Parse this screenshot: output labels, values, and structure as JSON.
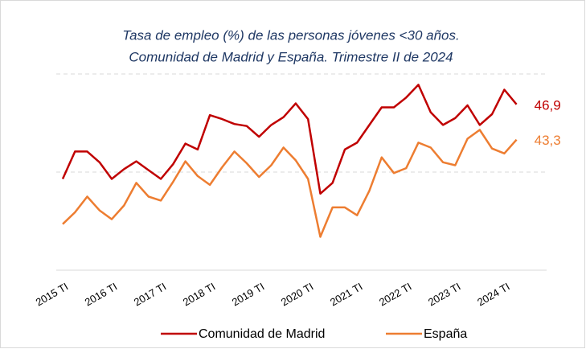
{
  "chart_data": {
    "type": "line",
    "title": [
      "Tasa de empleo (%) de las personas jóvenes <30 años.",
      "Comunidad de Madrid y España. Trimestre II de 2024"
    ],
    "categories": [
      "2015 TI",
      null,
      null,
      null,
      "2016 TI",
      null,
      null,
      null,
      "2017 TI",
      null,
      null,
      null,
      "2018 TI",
      null,
      null,
      null,
      "2019 TI",
      null,
      null,
      null,
      "2020 TI",
      null,
      null,
      null,
      "2021 TI",
      null,
      null,
      null,
      "2022 TI",
      null,
      null,
      null,
      "2023 TI",
      null,
      null,
      null,
      "2024 TI",
      null
    ],
    "series": [
      {
        "name": "Comunidad de Madrid",
        "color": "#c00000",
        "values": [
          39.3,
          42.1,
          42.1,
          41.0,
          39.3,
          40.3,
          41.1,
          40.2,
          39.3,
          40.8,
          42.9,
          42.3,
          45.8,
          45.4,
          44.9,
          44.7,
          43.6,
          44.8,
          45.6,
          47.0,
          45.4,
          37.8,
          38.9,
          42.3,
          43.0,
          44.8,
          46.6,
          46.6,
          47.6,
          48.9,
          46.1,
          44.8,
          45.5,
          46.8,
          44.8,
          45.9,
          48.4,
          46.9
        ],
        "value_labels": [
          null,
          null,
          null,
          null,
          null,
          null,
          null,
          null,
          null,
          null,
          null,
          null,
          null,
          null,
          null,
          null,
          null,
          null,
          null,
          null,
          null,
          null,
          null,
          null,
          null,
          null,
          null,
          null,
          null,
          null,
          null,
          null,
          null,
          null,
          null,
          null,
          null,
          "46,9"
        ]
      },
      {
        "name": "España",
        "color": "#ed7d31",
        "values": [
          34.7,
          35.9,
          37.5,
          36.1,
          35.2,
          36.6,
          38.9,
          37.5,
          37.1,
          39.0,
          41.1,
          39.6,
          38.7,
          40.5,
          42.1,
          40.9,
          39.5,
          40.7,
          42.5,
          41.2,
          39.3,
          33.4,
          36.4,
          36.4,
          35.6,
          38.1,
          41.5,
          39.9,
          40.4,
          43.0,
          42.5,
          41.0,
          40.7,
          43.4,
          44.3,
          42.4,
          41.9,
          43.3
        ],
        "value_labels": [
          null,
          null,
          null,
          null,
          null,
          null,
          null,
          null,
          null,
          null,
          null,
          null,
          null,
          null,
          null,
          null,
          null,
          null,
          null,
          null,
          null,
          null,
          null,
          null,
          null,
          null,
          null,
          null,
          null,
          null,
          null,
          null,
          null,
          null,
          null,
          null,
          null,
          "43,3"
        ]
      }
    ],
    "ylim": [
      30,
      50
    ],
    "yticks": [
      30,
      40,
      50
    ],
    "grid": true
  }
}
